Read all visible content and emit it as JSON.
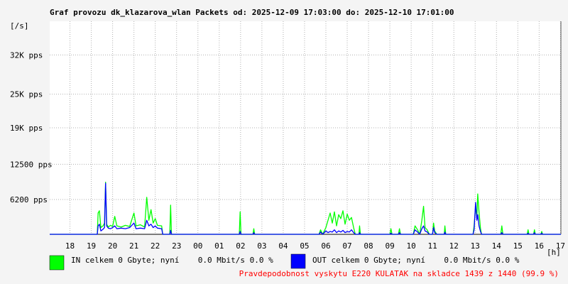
{
  "chart_data": {
    "type": "line",
    "title": "Graf provozu dk_klazarova_wlan Packets od: 2025-12-09 17:03:00 do: 2025-12-10 17:01:00",
    "y_unit_label": "[/s]",
    "x_unit_label": "[h]",
    "footer": "Pravdepodobnost vyskytu E220 KULATAK na skladce 1439 z 1440 (99.9 %)",
    "grid": true,
    "xlim": [
      17.05,
      41.02
    ],
    "ylim": [
      0,
      38000
    ],
    "xticks": [
      18,
      19,
      20,
      21,
      22,
      23,
      {
        "value": 24,
        "label": "00"
      },
      {
        "value": 25,
        "label": "01"
      },
      {
        "value": 26,
        "label": "02"
      },
      {
        "value": 27,
        "label": "03"
      },
      {
        "value": 28,
        "label": "04"
      },
      {
        "value": 29,
        "label": "05"
      },
      {
        "value": 30,
        "label": "06"
      },
      {
        "value": 31,
        "label": "07"
      },
      {
        "value": 32,
        "label": "08"
      },
      {
        "value": 33,
        "label": "09"
      },
      {
        "value": 34,
        "label": "10"
      },
      {
        "value": 35,
        "label": "11"
      },
      {
        "value": 36,
        "label": "12"
      },
      {
        "value": 37,
        "label": "13"
      },
      {
        "value": 38,
        "label": "14"
      },
      {
        "value": 39,
        "label": "15"
      },
      {
        "value": 40,
        "label": "16"
      },
      {
        "value": 41,
        "label": "17"
      }
    ],
    "yticks": [
      {
        "value": 6200,
        "label": "6200 pps"
      },
      {
        "value": 12500,
        "label": "12500 pps"
      },
      {
        "value": 19000,
        "label": "19K pps"
      },
      {
        "value": 25000,
        "label": "25K pps"
      },
      {
        "value": 32000,
        "label": "32K pps"
      }
    ],
    "x": [
      17.05,
      19.28,
      19.32,
      19.38,
      19.45,
      19.55,
      19.62,
      19.67,
      19.72,
      19.8,
      19.9,
      20.0,
      20.1,
      20.2,
      20.4,
      20.6,
      20.8,
      21.0,
      21.1,
      21.3,
      21.5,
      21.6,
      21.7,
      21.8,
      21.9,
      22.0,
      22.1,
      22.3,
      22.35,
      22.68,
      22.72,
      22.76,
      25.94,
      25.98,
      26.02,
      26.58,
      26.62,
      26.66,
      29.68,
      29.75,
      29.85,
      30.0,
      30.1,
      30.2,
      30.3,
      30.4,
      30.5,
      30.6,
      30.7,
      30.8,
      30.9,
      31.0,
      31.1,
      31.2,
      31.3,
      31.38,
      31.55,
      31.58,
      31.62,
      33.0,
      33.05,
      33.1,
      33.4,
      33.45,
      33.5,
      34.1,
      34.18,
      34.3,
      34.4,
      34.5,
      34.58,
      34.65,
      34.75,
      34.85,
      35.0,
      35.05,
      35.1,
      35.2,
      35.55,
      35.58,
      35.62,
      36.9,
      36.95,
      37.02,
      37.08,
      37.12,
      37.18,
      37.25,
      37.3,
      38.2,
      38.25,
      38.3,
      39.44,
      39.48,
      39.52,
      39.74,
      39.78,
      39.82,
      40.08,
      40.12,
      40.16,
      41.02
    ],
    "series": [
      {
        "name": "IN celkem 0 Gbyte; nyní    0.0 Mbit/s 0.0 %",
        "color": "#00ff00",
        "values": [
          0,
          0,
          3800,
          4200,
          1200,
          1500,
          2000,
          9300,
          1800,
          1300,
          1600,
          1400,
          3200,
          1500,
          1300,
          1600,
          1400,
          3800,
          1500,
          1700,
          1300,
          6600,
          2500,
          4400,
          2000,
          2800,
          1600,
          1500,
          0,
          0,
          5200,
          0,
          0,
          4000,
          0,
          0,
          1000,
          0,
          0,
          800,
          0,
          1200,
          2500,
          3800,
          2000,
          4000,
          1500,
          3500,
          2800,
          4200,
          1800,
          3600,
          2500,
          3000,
          1200,
          0,
          0,
          1500,
          0,
          0,
          1000,
          0,
          0,
          1000,
          0,
          0,
          1500,
          800,
          0,
          2500,
          5000,
          1200,
          800,
          0,
          0,
          2000,
          600,
          0,
          0,
          1500,
          0,
          0,
          1500,
          5000,
          3000,
          7200,
          4000,
          1000,
          0,
          0,
          1500,
          0,
          0,
          800,
          0,
          0,
          800,
          0,
          0,
          500,
          0,
          0
        ]
      },
      {
        "name": "OUT celkem 0 Gbyte; nyní    0.0 Mbit/s 0.0 %",
        "color": "#0000ff",
        "values": [
          0,
          0,
          1500,
          1800,
          600,
          900,
          1200,
          9100,
          1500,
          1100,
          1000,
          1200,
          1500,
          1000,
          1100,
          1000,
          1200,
          2000,
          1000,
          1100,
          1000,
          2500,
          1500,
          1800,
          1200,
          1500,
          1100,
          1000,
          0,
          0,
          700,
          0,
          0,
          500,
          0,
          0,
          300,
          0,
          0,
          400,
          0,
          600,
          300,
          500,
          400,
          800,
          300,
          600,
          400,
          700,
          300,
          500,
          400,
          800,
          300,
          0,
          0,
          300,
          0,
          0,
          200,
          0,
          0,
          300,
          0,
          0,
          800,
          400,
          0,
          1000,
          1500,
          600,
          400,
          0,
          0,
          1200,
          300,
          0,
          0,
          400,
          0,
          0,
          800,
          5700,
          2500,
          3500,
          1500,
          500,
          0,
          0,
          300,
          0,
          0,
          200,
          0,
          0,
          300,
          0,
          0,
          200,
          0,
          0
        ]
      }
    ]
  }
}
